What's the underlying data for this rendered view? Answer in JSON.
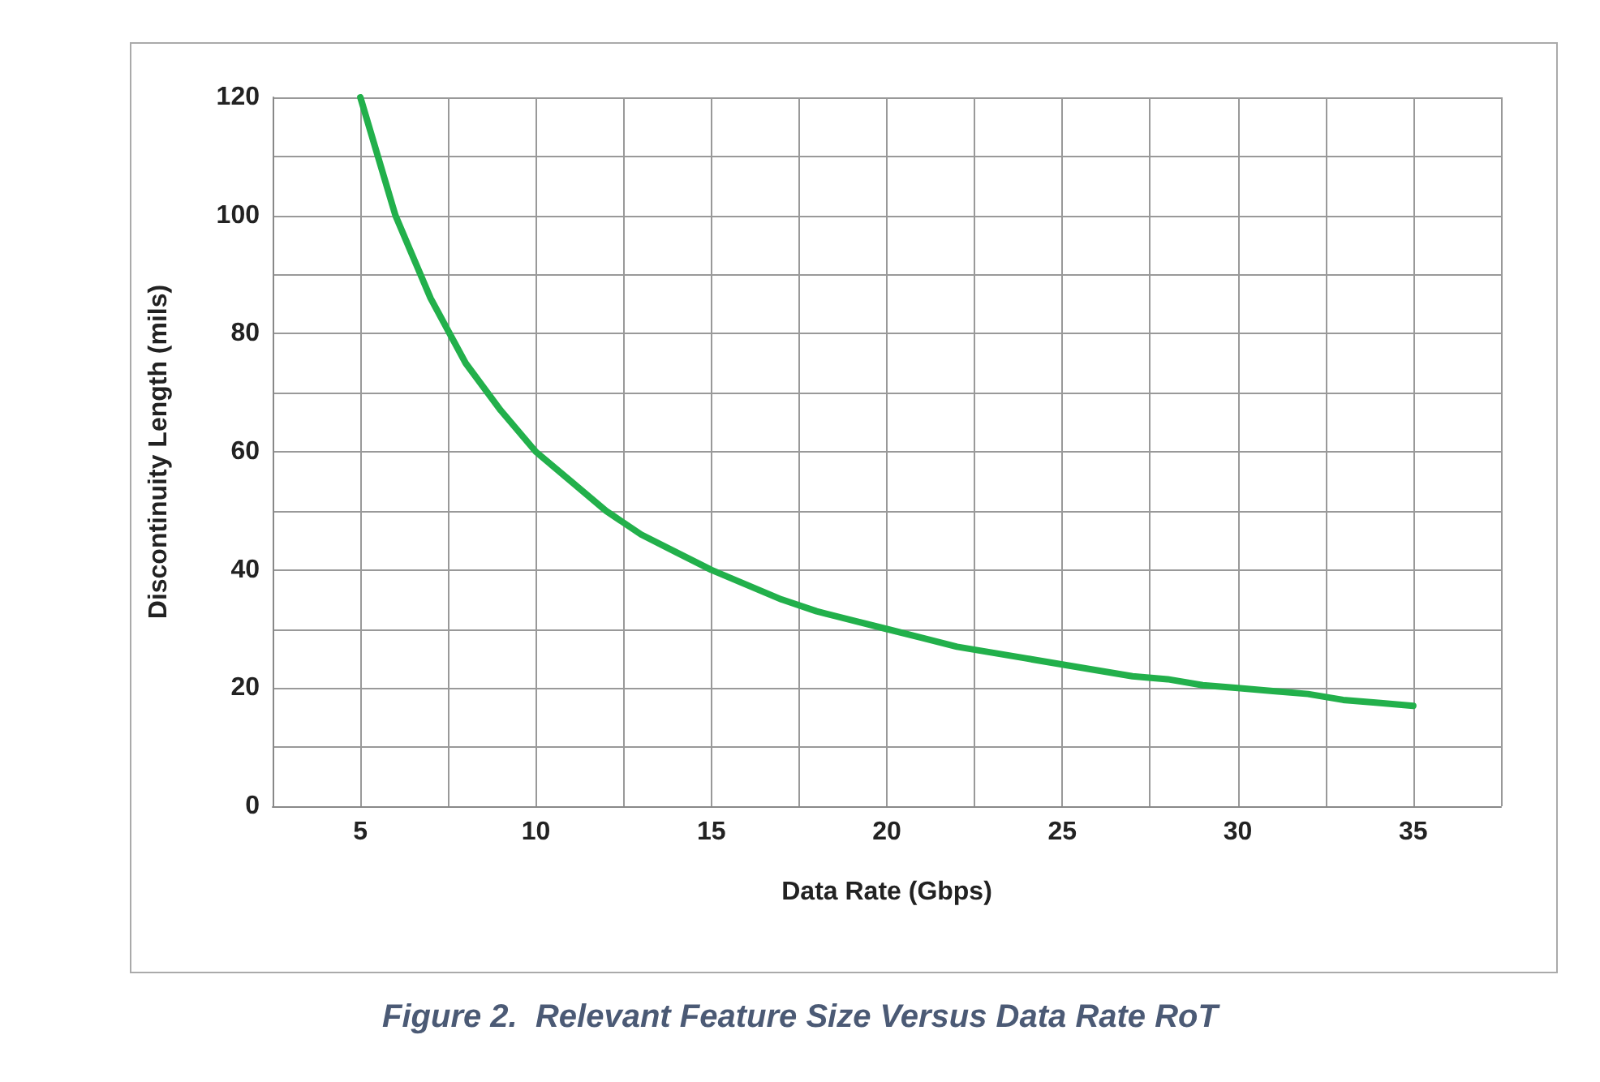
{
  "chart_data": {
    "type": "line",
    "xlabel": "Data Rate (Gbps)",
    "ylabel": "Discontinuity Length (mils)",
    "annotations": [
      "Figure 2.  Relevant Feature Size Versus Data Rate RoT"
    ],
    "x": [
      5,
      6,
      7,
      8,
      9,
      10,
      11,
      12,
      13,
      14,
      15,
      16,
      17,
      18,
      19,
      20,
      21,
      22,
      23,
      24,
      25,
      26,
      27,
      28,
      29,
      30,
      31,
      32,
      33,
      34,
      35
    ],
    "series": [
      {
        "color": "#22b04b",
        "values": [
          120,
          100,
          86,
          75,
          67,
          60,
          55,
          50,
          46,
          43,
          40,
          37.5,
          35,
          33,
          31.5,
          30,
          28.5,
          27,
          26,
          25,
          24,
          23,
          22,
          21.5,
          20.5,
          20,
          19.5,
          19,
          18,
          17.5,
          17
        ]
      }
    ],
    "xlim": [
      2.5,
      37.5
    ],
    "xticks": [
      {
        "value": 2.5,
        "label": null
      },
      5,
      {
        "value": 7.5,
        "label": null
      },
      10,
      {
        "value": 12.5,
        "label": null
      },
      15,
      {
        "value": 17.5,
        "label": null
      },
      20,
      {
        "value": 22.5,
        "label": null
      },
      25,
      {
        "value": 27.5,
        "label": null
      },
      30,
      {
        "value": 32.5,
        "label": null
      },
      35,
      {
        "value": 37.5,
        "label": null
      }
    ],
    "ylim": [
      0,
      120
    ],
    "yticks": [
      0,
      {
        "value": 10,
        "label": null
      },
      20,
      {
        "value": 30,
        "label": null
      },
      40,
      {
        "value": 50,
        "label": null
      },
      60,
      {
        "value": 70,
        "label": null
      },
      80,
      {
        "value": 90,
        "label": null
      },
      100,
      {
        "value": 110,
        "label": null
      },
      120
    ],
    "grid": true,
    "legend": false,
    "marker": "none",
    "line_style": "solid"
  }
}
